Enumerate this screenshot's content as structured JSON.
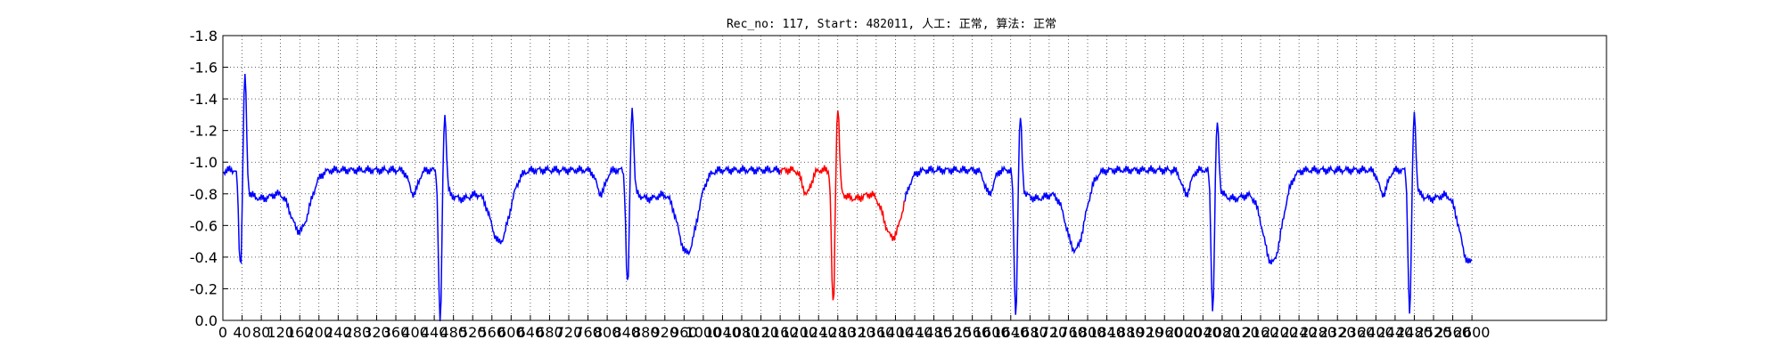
{
  "chart_data": {
    "type": "line",
    "title": "Rec_no: 117, Start: 482011, 人工: 正常, 算法: 正常",
    "xlabel": "",
    "ylabel": "",
    "xlim": [
      0,
      2880
    ],
    "ylim": [
      -1.8,
      0.0
    ],
    "grid": true,
    "grid_style": "dotted",
    "yticks": [
      "0.0",
      "-0.2",
      "-0.4",
      "-0.6",
      "-0.8",
      "-1.0",
      "-1.2",
      "-1.4",
      "-1.6",
      "-1.8"
    ],
    "ytick_values": [
      0.0,
      -0.2,
      -0.4,
      -0.6,
      -0.8,
      -1.0,
      -1.2,
      -1.4,
      -1.6,
      -1.8
    ],
    "xticks": [
      "0",
      "40",
      "80",
      "120",
      "160",
      "200",
      "240",
      "280",
      "320",
      "360",
      "400",
      "440",
      "480",
      "520",
      "560",
      "600",
      "640",
      "680",
      "720",
      "760",
      "800",
      "840",
      "880",
      "920",
      "960",
      "1000",
      "1040",
      "1080",
      "1120",
      "1160",
      "1200",
      "1240",
      "1280",
      "1320",
      "1360",
      "1400",
      "1440",
      "1480",
      "1520",
      "1560",
      "1600",
      "1640",
      "1680",
      "1720",
      "1760",
      "1800",
      "1840",
      "1880",
      "1920",
      "1960",
      "2000",
      "2040",
      "2080",
      "2120",
      "2160",
      "2200",
      "2240",
      "2280",
      "2320",
      "2360",
      "2400",
      "2440",
      "2480",
      "2520",
      "2560",
      "2600"
    ],
    "xtick_values": [
      0,
      40,
      80,
      120,
      160,
      200,
      240,
      280,
      320,
      360,
      400,
      440,
      480,
      520,
      560,
      600,
      640,
      680,
      720,
      760,
      800,
      840,
      880,
      920,
      960,
      1000,
      1040,
      1080,
      1120,
      1160,
      1200,
      1240,
      1280,
      1320,
      1360,
      1400,
      1440,
      1480,
      1520,
      1560,
      1600,
      1640,
      1680,
      1720,
      1760,
      1800,
      1840,
      1880,
      1920,
      1960,
      2000,
      2040,
      2080,
      2120,
      2160,
      2200,
      2240,
      2280,
      2320,
      2360,
      2400,
      2440,
      2480,
      2520,
      2560,
      2600
    ],
    "x_range": [
      0,
      2600
    ],
    "beat_positions": [
      36,
      452,
      842,
      1270,
      1650,
      2060,
      2470
    ],
    "beat_r_values": [
      -0.36,
      0.0,
      -0.23,
      -0.1,
      -0.05,
      -0.08,
      -0.06
    ],
    "beat_s_values": [
      -1.68,
      -1.44,
      -1.48,
      -1.48,
      -1.41,
      -1.38,
      -1.45
    ],
    "t_wave_peaks": [
      -0.47,
      -0.4,
      -0.33,
      -0.43,
      -0.35,
      -0.27,
      -0.27
    ],
    "baseline": -0.95,
    "highlight_range": [
      1160,
      1420
    ],
    "series": [
      {
        "color": "#0000ff"
      },
      {
        "color": "#ff0000"
      }
    ]
  }
}
